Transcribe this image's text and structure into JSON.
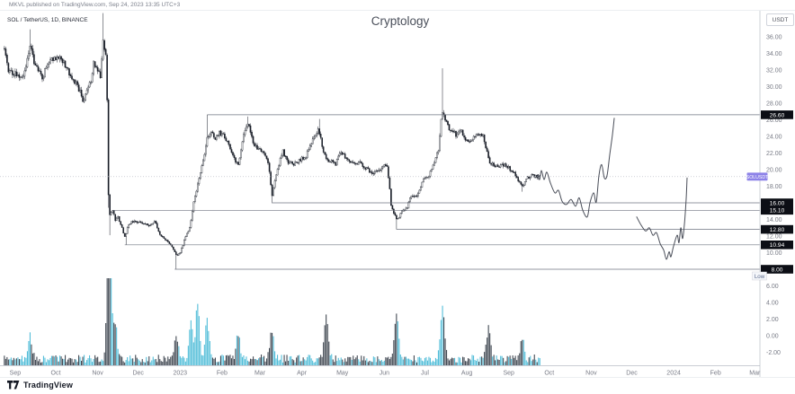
{
  "publish_bar": {
    "text": "MKVL published on TradingView.com, Sep 24, 2023 13:35 UTC+3"
  },
  "header": {
    "legend": "SOL / TetherUS, 1D, BINANCE",
    "title": "Cryptology"
  },
  "price_axis": {
    "currency_label": "USDT",
    "ticks": [
      "36.00",
      "34.00",
      "32.00",
      "30.00",
      "28.00",
      "26.00",
      "24.00",
      "22.00",
      "20.00",
      "18.00",
      "14.00",
      "12.00",
      "10.00",
      "6.00",
      "4.00",
      "2.00",
      "0.00",
      "-2.00"
    ],
    "symbol_badge": {
      "text": "SOLUSDT",
      "color": "#8d82e8"
    },
    "low_badge": {
      "text": "Low",
      "color": "#5b6b8c"
    }
  },
  "time_axis": {
    "labels": [
      {
        "text": "Sep",
        "date": "2022-09-01"
      },
      {
        "text": "Oct",
        "date": "2022-10-01"
      },
      {
        "text": "Nov",
        "date": "2022-11-01"
      },
      {
        "text": "Dec",
        "date": "2022-12-01"
      },
      {
        "text": "2023",
        "date": "2023-01-01"
      },
      {
        "text": "Feb",
        "date": "2023-02-01"
      },
      {
        "text": "Mar",
        "date": "2023-03-01"
      },
      {
        "text": "Apr",
        "date": "2023-04-01"
      },
      {
        "text": "May",
        "date": "2023-05-01"
      },
      {
        "text": "Jun",
        "date": "2023-06-01"
      },
      {
        "text": "Jul",
        "date": "2023-07-01"
      },
      {
        "text": "Aug",
        "date": "2023-08-01"
      },
      {
        "text": "Sep",
        "date": "2023-09-01"
      },
      {
        "text": "Oct",
        "date": "2023-10-01"
      },
      {
        "text": "Nov",
        "date": "2023-11-01"
      },
      {
        "text": "Dec",
        "date": "2023-12-01"
      },
      {
        "text": "2024",
        "date": "2024-01-01"
      },
      {
        "text": "Feb",
        "date": "2024-02-01"
      },
      {
        "text": "Mar",
        "date": "2024-03-01"
      }
    ]
  },
  "footer": {
    "brand": "TradingView"
  },
  "chart_data": {
    "type": "candlestick",
    "symbol": "SOL/USDT",
    "exchange": "BINANCE",
    "interval": "1D",
    "title": "Cryptology",
    "range": {
      "start": "2022-08-24",
      "end": "2023-09-24"
    },
    "last_price": 19.16,
    "price_scale": {
      "min": -2,
      "max": 37,
      "tick_step": 2
    },
    "anchors": [
      [
        "2022-08-24",
        34.6
      ],
      [
        "2022-08-27",
        32.0
      ],
      [
        "2022-08-30",
        31.6
      ],
      [
        "2022-09-03",
        31.6
      ],
      [
        "2022-09-06",
        31.0
      ],
      [
        "2022-09-09",
        32.5
      ],
      [
        "2022-09-12",
        35.2
      ],
      [
        "2022-09-15",
        33.0
      ],
      [
        "2022-09-18",
        32.0
      ],
      [
        "2022-09-21",
        30.9
      ],
      [
        "2022-09-24",
        32.4
      ],
      [
        "2022-09-27",
        33.3
      ],
      [
        "2022-09-30",
        33.4
      ],
      [
        "2022-10-04",
        33.5
      ],
      [
        "2022-10-08",
        32.6
      ],
      [
        "2022-10-12",
        31.3
      ],
      [
        "2022-10-16",
        30.4
      ],
      [
        "2022-10-19",
        29.3
      ],
      [
        "2022-10-21",
        28.3
      ],
      [
        "2022-10-24",
        29.3
      ],
      [
        "2022-10-27",
        30.8
      ],
      [
        "2022-10-29",
        32.8
      ],
      [
        "2022-11-01",
        32.2
      ],
      [
        "2022-11-03",
        31.3
      ],
      [
        "2022-11-05",
        36.0
      ],
      [
        "2022-11-07",
        33.6
      ],
      [
        "2022-11-08",
        28.6
      ],
      [
        "2022-11-09",
        17.0
      ],
      [
        "2022-11-10",
        14.5
      ],
      [
        "2022-11-12",
        15.2
      ],
      [
        "2022-11-14",
        13.9
      ],
      [
        "2022-11-16",
        14.4
      ],
      [
        "2022-11-18",
        13.4
      ],
      [
        "2022-11-21",
        11.9
      ],
      [
        "2022-11-24",
        13.4
      ],
      [
        "2022-11-28",
        13.9
      ],
      [
        "2022-12-02",
        13.6
      ],
      [
        "2022-12-06",
        13.5
      ],
      [
        "2022-12-10",
        13.3
      ],
      [
        "2022-12-13",
        13.9
      ],
      [
        "2022-12-17",
        12.2
      ],
      [
        "2022-12-21",
        11.6
      ],
      [
        "2022-12-25",
        10.9
      ],
      [
        "2022-12-28",
        10.1
      ],
      [
        "2022-12-29",
        9.7
      ],
      [
        "2023-01-01",
        10.0
      ],
      [
        "2023-01-04",
        11.4
      ],
      [
        "2023-01-08",
        13.0
      ],
      [
        "2023-01-11",
        16.0
      ],
      [
        "2023-01-14",
        18.4
      ],
      [
        "2023-01-18",
        21.0
      ],
      [
        "2023-01-21",
        24.0
      ],
      [
        "2023-01-24",
        24.6
      ],
      [
        "2023-01-27",
        23.8
      ],
      [
        "2023-01-30",
        24.4
      ],
      [
        "2023-02-02",
        24.2
      ],
      [
        "2023-02-06",
        23.2
      ],
      [
        "2023-02-10",
        21.2
      ],
      [
        "2023-02-13",
        20.6
      ],
      [
        "2023-02-17",
        24.0
      ],
      [
        "2023-02-20",
        25.6
      ],
      [
        "2023-02-24",
        23.2
      ],
      [
        "2023-02-28",
        22.4
      ],
      [
        "2023-03-04",
        22.1
      ],
      [
        "2023-03-07",
        20.9
      ],
      [
        "2023-03-10",
        16.9
      ],
      [
        "2023-03-14",
        20.2
      ],
      [
        "2023-03-18",
        22.2
      ],
      [
        "2023-03-22",
        20.8
      ],
      [
        "2023-03-26",
        20.7
      ],
      [
        "2023-03-31",
        21.2
      ],
      [
        "2023-04-04",
        21.6
      ],
      [
        "2023-04-09",
        23.6
      ],
      [
        "2023-04-13",
        25.0
      ],
      [
        "2023-04-18",
        21.6
      ],
      [
        "2023-04-22",
        21.0
      ],
      [
        "2023-04-26",
        20.6
      ],
      [
        "2023-04-30",
        22.3
      ],
      [
        "2023-05-04",
        21.3
      ],
      [
        "2023-05-09",
        20.8
      ],
      [
        "2023-05-13",
        20.9
      ],
      [
        "2023-05-18",
        20.2
      ],
      [
        "2023-05-23",
        19.5
      ],
      [
        "2023-05-28",
        19.9
      ],
      [
        "2023-05-31",
        20.5
      ],
      [
        "2023-06-03",
        20.2
      ],
      [
        "2023-06-05",
        17.5
      ],
      [
        "2023-06-06",
        15.8
      ],
      [
        "2023-06-10",
        13.9
      ],
      [
        "2023-06-14",
        14.9
      ],
      [
        "2023-06-18",
        15.5
      ],
      [
        "2023-06-21",
        17.0
      ],
      [
        "2023-06-25",
        16.7
      ],
      [
        "2023-06-30",
        18.8
      ],
      [
        "2023-07-04",
        19.4
      ],
      [
        "2023-07-08",
        20.8
      ],
      [
        "2023-07-11",
        22.5
      ],
      [
        "2023-07-13",
        25.8
      ],
      [
        "2023-07-14",
        26.9
      ],
      [
        "2023-07-16",
        26.2
      ],
      [
        "2023-07-19",
        25.0
      ],
      [
        "2023-07-24",
        24.2
      ],
      [
        "2023-07-28",
        24.6
      ],
      [
        "2023-07-31",
        23.5
      ],
      [
        "2023-08-04",
        23.3
      ],
      [
        "2023-08-08",
        24.3
      ],
      [
        "2023-08-13",
        24.2
      ],
      [
        "2023-08-16",
        22.0
      ],
      [
        "2023-08-18",
        20.9
      ],
      [
        "2023-08-23",
        20.4
      ],
      [
        "2023-08-28",
        20.6
      ],
      [
        "2023-08-31",
        20.4
      ],
      [
        "2023-09-04",
        19.7
      ],
      [
        "2023-09-08",
        18.8
      ],
      [
        "2023-09-11",
        18.0
      ],
      [
        "2023-09-15",
        19.0
      ],
      [
        "2023-09-19",
        19.4
      ],
      [
        "2023-09-22",
        19.1
      ],
      [
        "2023-09-24",
        19.2
      ]
    ],
    "extremes": [
      [
        "2022-09-12",
        "high",
        36.9
      ],
      [
        "2022-11-05",
        "high",
        38.85
      ],
      [
        "2022-11-09",
        "low",
        15.4
      ],
      [
        "2022-11-10",
        "low",
        12.1
      ],
      [
        "2022-11-22",
        "low",
        10.94
      ],
      [
        "2022-12-29",
        "low",
        8.0
      ],
      [
        "2023-01-21",
        "high",
        26.6
      ],
      [
        "2023-02-20",
        "high",
        26.4
      ],
      [
        "2023-03-10",
        "low",
        15.96
      ],
      [
        "2023-04-14",
        "high",
        26.1
      ],
      [
        "2023-06-10",
        "low",
        12.8
      ],
      [
        "2023-07-14",
        "high",
        32.2
      ],
      [
        "2023-09-11",
        "low",
        17.34
      ]
    ],
    "levels": [
      {
        "price": 26.6,
        "label": "26.60",
        "start": "2023-01-21"
      },
      {
        "price": 16.0,
        "label": "16.00",
        "start": "2023-03-10"
      },
      {
        "price": 15.1,
        "label": "15.10",
        "start": "2022-11-12"
      },
      {
        "price": 12.8,
        "label": "12.80",
        "start": "2023-06-10"
      },
      {
        "price": 10.94,
        "label": "10.94",
        "start": "2022-11-21"
      },
      {
        "price": 8.0,
        "label": "8.00",
        "start": "2022-12-28"
      }
    ],
    "volume_events": [
      [
        "2022-09-12",
        25
      ],
      [
        "2022-11-09",
        97
      ],
      [
        "2022-11-10",
        80
      ],
      [
        "2022-11-14",
        40
      ],
      [
        "2022-12-29",
        28
      ],
      [
        "2023-01-09",
        38
      ],
      [
        "2023-01-14",
        63
      ],
      [
        "2023-01-21",
        42
      ],
      [
        "2023-02-13",
        28
      ],
      [
        "2023-03-10",
        33
      ],
      [
        "2023-04-19",
        48
      ],
      [
        "2023-06-10",
        52
      ],
      [
        "2023-07-14",
        55
      ],
      [
        "2023-08-17",
        33
      ],
      [
        "2023-09-11",
        22
      ]
    ],
    "projections": [
      {
        "name": "bullish-recovery-path",
        "points": [
          [
            598,
            19.4
          ],
          [
            600,
            18.8
          ],
          [
            602,
            19.9
          ],
          [
            605,
            18.8
          ],
          [
            608,
            19.7
          ],
          [
            612,
            18.4
          ],
          [
            617,
            17.2
          ],
          [
            621,
            17.5
          ],
          [
            625,
            16.2
          ],
          [
            630,
            15.8
          ],
          [
            635,
            16.4
          ],
          [
            640,
            15.6
          ],
          [
            644,
            16.6
          ],
          [
            648,
            15.1
          ],
          [
            653,
            14.3
          ],
          [
            656,
            16.0
          ],
          [
            660,
            17.2
          ],
          [
            663,
            16.1
          ],
          [
            666,
            19.3
          ],
          [
            669,
            20.6
          ],
          [
            672,
            19.0
          ],
          [
            675,
            19.3
          ],
          [
            678,
            21.8
          ],
          [
            681,
            24.2
          ],
          [
            683,
            26.2
          ]
        ]
      },
      {
        "name": "bearish-then-recovery-path",
        "points": [
          [
            708,
            14.3
          ],
          [
            713,
            13.3
          ],
          [
            718,
            12.6
          ],
          [
            722,
            13.0
          ],
          [
            726,
            12.1
          ],
          [
            730,
            12.4
          ],
          [
            734,
            11.1
          ],
          [
            738,
            10.3
          ],
          [
            741,
            9.2
          ],
          [
            744,
            10.1
          ],
          [
            746,
            9.5
          ],
          [
            749,
            10.8
          ],
          [
            753,
            12.1
          ],
          [
            755,
            11.2
          ],
          [
            757,
            13.0
          ],
          [
            759,
            11.7
          ],
          [
            761,
            13.4
          ],
          [
            763,
            16.5
          ],
          [
            764,
            19.0
          ]
        ]
      }
    ],
    "colors": {
      "up_body": "#ffffff",
      "down_body": "#1a1e29",
      "outline": "#1a1e29",
      "vol_up": "#54bed9",
      "vol_down": "#434a54",
      "level_line": "#6f7480",
      "projection": "#4a4e59",
      "last_price_line": "#b2b5be",
      "axis_text": "#787b86",
      "badge_bg": "#0c0e15",
      "badge_text": "#ffffff",
      "axis_border": "#b8bcc6"
    }
  }
}
